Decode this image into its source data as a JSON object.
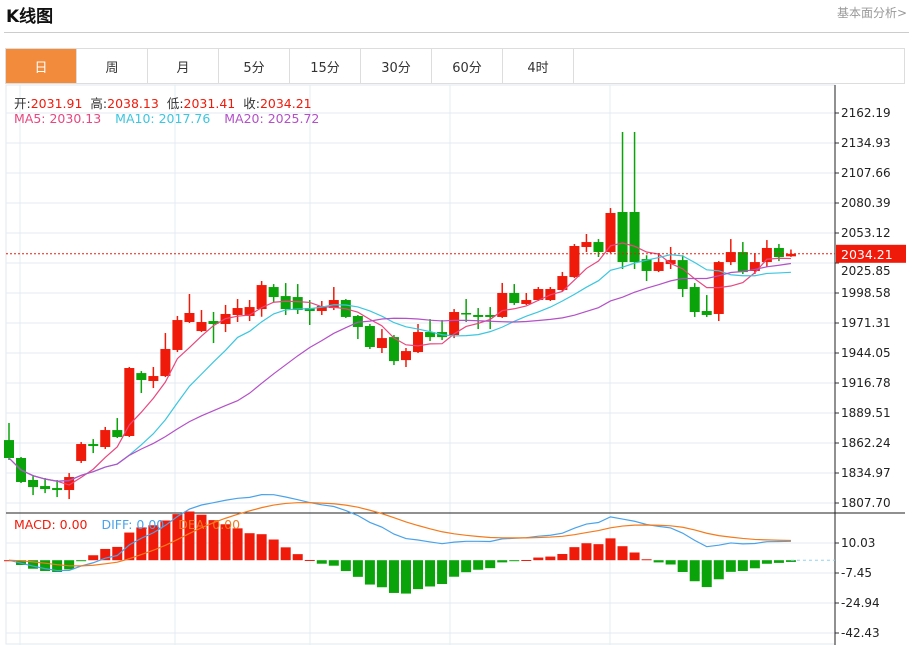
{
  "header": {
    "title": "K线图",
    "more_link": "基本面分析>"
  },
  "tabs": [
    {
      "label": "日",
      "active": true
    },
    {
      "label": "周"
    },
    {
      "label": "月"
    },
    {
      "label": "5分"
    },
    {
      "label": "15分"
    },
    {
      "label": "30分"
    },
    {
      "label": "60分"
    },
    {
      "label": "4时"
    }
  ],
  "ohlc_info": {
    "open_label": "开:",
    "open": "2031.91",
    "high_label": "高:",
    "high": "2038.13",
    "low_label": "低:",
    "low": "2031.41",
    "close_label": "收:",
    "close": "2034.21"
  },
  "ma_info": {
    "ma5": "MA5: 2030.13",
    "ma10": "MA10: 2017.76",
    "ma20": "MA20: 2025.72"
  },
  "macd_info": {
    "macd": "MACD: 0.00",
    "diff": "DIFF: 0.00",
    "dea": "DEA: 0.00"
  },
  "colors": {
    "up": "#f01a0a",
    "down": "#0aa30a",
    "ma5": "#e8477f",
    "ma10": "#3cc6e0",
    "ma20": "#b450c8",
    "diff": "#4aa3ea",
    "dea": "#f57a1c",
    "accent": "#f28b3c"
  },
  "chart_data": {
    "type": "candlestick",
    "price_ticks": [
      "2162.19",
      "2134.93",
      "2107.66",
      "2080.39",
      "2053.12",
      "2025.85",
      "1998.58",
      "1971.31",
      "1944.05",
      "1916.78",
      "1889.51",
      "1862.24",
      "1834.97",
      "1807.70"
    ],
    "ylim": [
      1807.7,
      2162.19
    ],
    "current_price": "2034.21",
    "macd_ticks": [
      "10.03",
      "-7.45",
      "-24.94",
      "-42.43"
    ],
    "macd_ylim": [
      -42.43,
      10.03
    ],
    "candles": [
      [
        1864.9,
        1880.4,
        1846.8,
        1848.6
      ],
      [
        1848.6,
        1849.5,
        1825.9,
        1826.8
      ],
      [
        1828.6,
        1833.1,
        1814.9,
        1822.2
      ],
      [
        1823.1,
        1830.4,
        1816.7,
        1820.4
      ],
      [
        1821.3,
        1828.6,
        1813.1,
        1819.5
      ],
      [
        1819.5,
        1834.9,
        1811.3,
        1831.3
      ],
      [
        1845.9,
        1863.1,
        1844.1,
        1861.3
      ],
      [
        1861.3,
        1865.8,
        1853.1,
        1859.5
      ],
      [
        1858.6,
        1876.8,
        1856.8,
        1874.0
      ],
      [
        1874.0,
        1884.9,
        1866.8,
        1867.7
      ],
      [
        1868.6,
        1931.3,
        1867.7,
        1930.4
      ],
      [
        1925.8,
        1927.6,
        1907.7,
        1919.5
      ],
      [
        1918.6,
        1931.3,
        1912.2,
        1923.1
      ],
      [
        1923.1,
        1962.2,
        1922.2,
        1947.7
      ],
      [
        1946.8,
        1977.7,
        1944.9,
        1974.0
      ],
      [
        1972.2,
        1997.7,
        1971.3,
        1980.4
      ],
      [
        1964.0,
        1983.1,
        1963.1,
        1972.2
      ],
      [
        1973.1,
        1981.3,
        1953.1,
        1970.4
      ],
      [
        1970.4,
        1987.7,
        1963.1,
        1979.5
      ],
      [
        1978.6,
        1993.1,
        1972.2,
        1984.9
      ],
      [
        1977.7,
        1992.2,
        1973.1,
        1985.8
      ],
      [
        1984.0,
        2009.5,
        1977.0,
        2005.8
      ],
      [
        2004.0,
        2006.7,
        1990.4,
        1994.9
      ],
      [
        1995.8,
        2007.6,
        1978.6,
        1984.0
      ],
      [
        1994.9,
        2006.7,
        1979.5,
        1983.1
      ],
      [
        1984.9,
        1992.2,
        1969.5,
        1982.2
      ],
      [
        1982.2,
        1991.3,
        1978.6,
        1986.7
      ],
      [
        1984.9,
        2004.0,
        1983.1,
        1992.2
      ],
      [
        1992.2,
        1993.1,
        1975.9,
        1976.8
      ],
      [
        1977.7,
        1978.6,
        1956.7,
        1967.7
      ],
      [
        1968.6,
        1970.4,
        1947.7,
        1949.5
      ],
      [
        1948.6,
        1965.8,
        1944.0,
        1957.6
      ],
      [
        1958.5,
        1960.4,
        1933.1,
        1936.7
      ],
      [
        1937.6,
        1948.6,
        1931.3,
        1945.8
      ],
      [
        1944.9,
        1970.4,
        1944.0,
        1963.1
      ],
      [
        1963.1,
        1974.9,
        1954.9,
        1958.5
      ],
      [
        1963.1,
        1974.0,
        1955.8,
        1958.5
      ],
      [
        1960.4,
        1984.0,
        1957.6,
        1981.3
      ],
      [
        1980.4,
        1993.1,
        1972.2,
        1979.5
      ],
      [
        1978.6,
        1984.9,
        1965.8,
        1976.8
      ],
      [
        1978.6,
        1985.8,
        1965.8,
        1976.8
      ],
      [
        1976.8,
        2007.7,
        1975.9,
        1998.6
      ],
      [
        1998.6,
        2006.7,
        1987.7,
        1989.5
      ],
      [
        1988.6,
        1998.6,
        1987.7,
        1992.2
      ],
      [
        1992.2,
        2004.0,
        1991.3,
        2002.2
      ],
      [
        1992.2,
        2004.0,
        1991.3,
        2002.2
      ],
      [
        2001.3,
        2017.7,
        2000.4,
        2014.0
      ],
      [
        2013.1,
        2043.1,
        2012.2,
        2041.3
      ],
      [
        2040.4,
        2052.2,
        2035.8,
        2044.9
      ],
      [
        2044.9,
        2047.6,
        2031.3,
        2035.8
      ],
      [
        2035.8,
        2075.8,
        2034.9,
        2071.3
      ],
      [
        2072.2,
        2144.9,
        2020.4,
        2026.7
      ],
      [
        2072.2,
        2144.9,
        2020.4,
        2026.7
      ],
      [
        2029.4,
        2032.9,
        2009.5,
        2018.6
      ],
      [
        2018.6,
        2034.9,
        2017.6,
        2026.7
      ],
      [
        2024.9,
        2040.4,
        2020.4,
        2028.5
      ],
      [
        2028.5,
        2032.9,
        1994.9,
        2002.2
      ],
      [
        2004.0,
        2007.6,
        1976.8,
        1981.3
      ],
      [
        1982.2,
        1996.7,
        1976.8,
        1978.6
      ],
      [
        1979.5,
        2027.6,
        1973.1,
        2026.7
      ],
      [
        2026.7,
        2047.6,
        2024.0,
        2035.8
      ],
      [
        2035.8,
        2044.9,
        2015.8,
        2017.6
      ],
      [
        2018.6,
        2034.9,
        2015.8,
        2026.7
      ],
      [
        2026.7,
        2046.7,
        2022.2,
        2039.5
      ],
      [
        2039.5,
        2043.1,
        2027.6,
        2031.3
      ],
      [
        2031.91,
        2038.13,
        2031.41,
        2034.21
      ]
    ],
    "candle_format": [
      "open",
      "high",
      "low",
      "close"
    ],
    "overlays": [
      "MA5",
      "MA10",
      "MA20"
    ],
    "indicator": "MACD(12,26,9)"
  }
}
